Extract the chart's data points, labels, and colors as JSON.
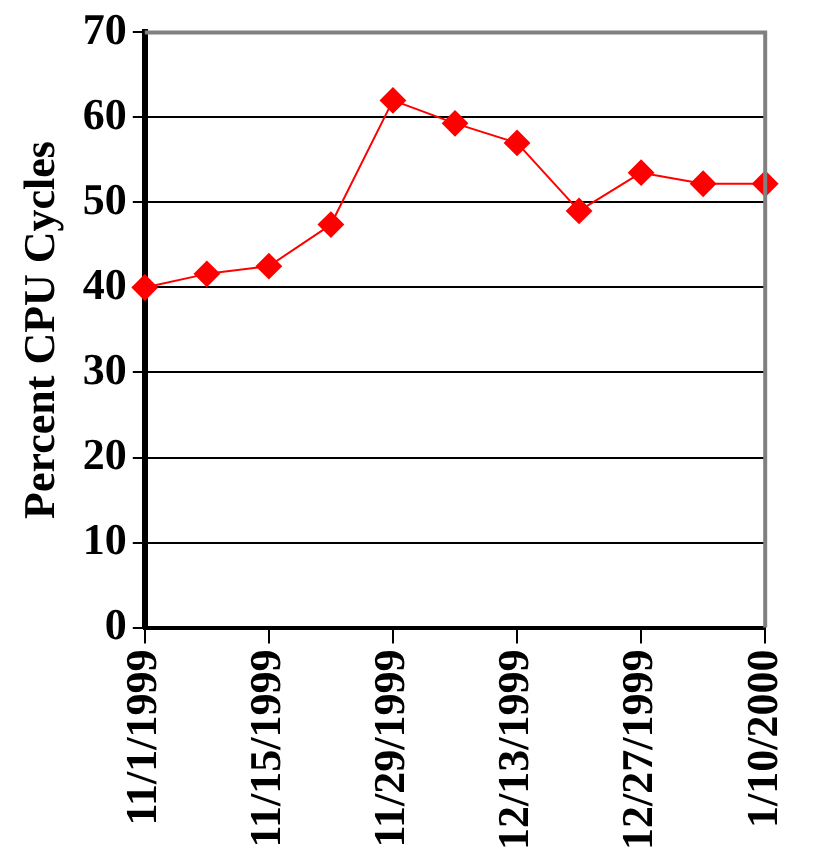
{
  "chart_data": {
    "type": "line",
    "ylabel": "Percent CPU Cycles",
    "categories": [
      "11/1/1999",
      null,
      "11/15/1999",
      null,
      "11/29/1999",
      null,
      "12/13/1999",
      null,
      "12/27/1999",
      null,
      "1/10/2000"
    ],
    "series": [
      {
        "color": "#ff0000",
        "values": [
          40,
          41.6,
          42.5,
          47.4,
          62,
          59.3,
          57,
          49,
          53.5,
          52.2,
          52.2
        ]
      }
    ],
    "ylim": [
      0,
      70
    ],
    "yticks": [
      0,
      10,
      20,
      30,
      40,
      50,
      60,
      70
    ],
    "grid": "y",
    "legend": false,
    "marker": "diamond",
    "line_style": "solid"
  }
}
